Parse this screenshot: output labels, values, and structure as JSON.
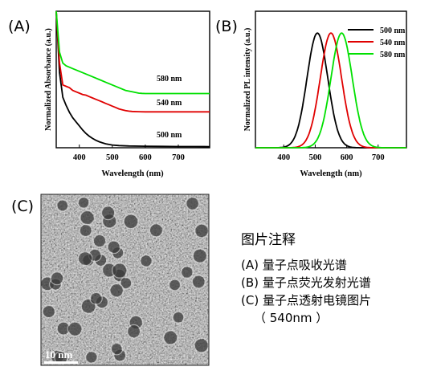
{
  "panels": {
    "a": "(A)",
    "b": "(B)",
    "c": "(C)"
  },
  "chart_data": [
    {
      "type": "line",
      "title": "",
      "xlabel": "Wavelength (nm)",
      "ylabel": "Normalized Absorbance (a.u.)",
      "xlim": [
        330,
        795
      ],
      "ylim": [
        0,
        1
      ],
      "xticks": [
        400,
        500,
        600,
        700
      ],
      "series": [
        {
          "name": "500 nm",
          "color": "#000000",
          "x": [
            330,
            340,
            350,
            360,
            370,
            380,
            390,
            400,
            410,
            420,
            430,
            440,
            450,
            460,
            470,
            480,
            490,
            500,
            520,
            550,
            600,
            650,
            700,
            750,
            795
          ],
          "y": [
            1.0,
            0.55,
            0.37,
            0.31,
            0.26,
            0.22,
            0.19,
            0.16,
            0.13,
            0.105,
            0.085,
            0.068,
            0.055,
            0.044,
            0.036,
            0.029,
            0.024,
            0.02,
            0.016,
            0.013,
            0.011,
            0.01,
            0.009,
            0.009,
            0.008
          ]
        },
        {
          "name": "540 nm",
          "color": "#e00000",
          "x": [
            330,
            340,
            350,
            360,
            370,
            380,
            390,
            400,
            410,
            420,
            430,
            440,
            450,
            460,
            470,
            480,
            490,
            500,
            510,
            520,
            530,
            540,
            550,
            560,
            580,
            600,
            650,
            700,
            750,
            795
          ],
          "y": [
            1.0,
            0.62,
            0.46,
            0.45,
            0.44,
            0.42,
            0.41,
            0.4,
            0.39,
            0.385,
            0.375,
            0.365,
            0.355,
            0.345,
            0.335,
            0.325,
            0.315,
            0.305,
            0.295,
            0.285,
            0.278,
            0.272,
            0.268,
            0.266,
            0.264,
            0.263,
            0.263,
            0.263,
            0.263,
            0.263
          ]
        },
        {
          "name": "580 nm",
          "color": "#00e000",
          "x": [
            330,
            340,
            350,
            360,
            370,
            380,
            400,
            420,
            440,
            460,
            480,
            500,
            520,
            540,
            560,
            570,
            580,
            590,
            600,
            620,
            650,
            700,
            750,
            795
          ],
          "y": [
            1.0,
            0.7,
            0.62,
            0.6,
            0.59,
            0.58,
            0.56,
            0.54,
            0.52,
            0.5,
            0.48,
            0.46,
            0.44,
            0.42,
            0.41,
            0.405,
            0.4,
            0.398,
            0.397,
            0.397,
            0.397,
            0.397,
            0.397,
            0.397
          ]
        }
      ],
      "annotations": [
        "580 nm",
        "540 nm",
        "500 nm"
      ]
    },
    {
      "type": "line",
      "title": "",
      "xlabel": "Wavelength (nm)",
      "ylabel": "Normalized PL intensity (a.u.)",
      "xlim": [
        310,
        790
      ],
      "ylim": [
        0,
        1
      ],
      "xticks": [
        400,
        500,
        600,
        700
      ],
      "legend": "top-right",
      "series": [
        {
          "name": "500 nm",
          "color": "#000000",
          "peak": 507,
          "fwhm": 78
        },
        {
          "name": "540 nm",
          "color": "#e00000",
          "peak": 550,
          "fwhm": 80
        },
        {
          "name": "580 nm",
          "color": "#00e000",
          "peak": 584,
          "fwhm": 80
        }
      ]
    }
  ],
  "tem": {
    "scale_label": "10 nm"
  },
  "caption": {
    "title": "图片注释",
    "lines": [
      "(A) 量子点吸收光谱",
      "(B) 量子点荧光发射光谱",
      "(C) 量子点透射电镜图片",
      "（ 540nm ）"
    ]
  }
}
